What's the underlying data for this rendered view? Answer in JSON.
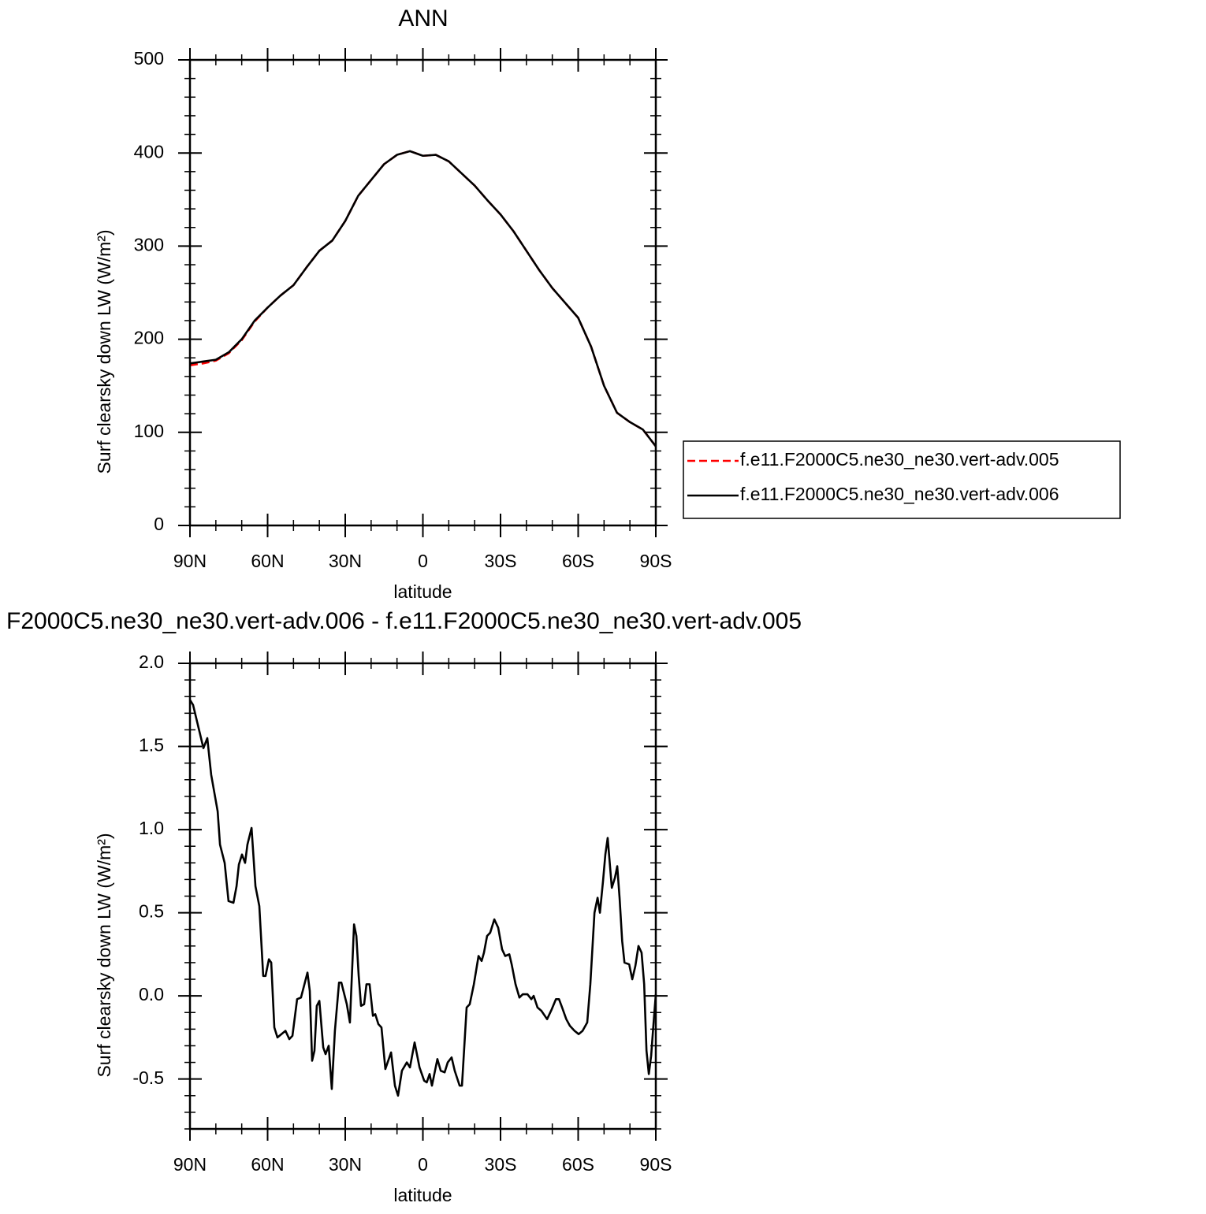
{
  "chart_data": [
    {
      "type": "line",
      "title": "ANN",
      "xlabel": "latitude",
      "ylabel": "Surf clearsky down LW (W/m²)",
      "x": [
        90,
        85,
        80,
        75,
        70,
        65,
        60,
        55,
        50,
        45,
        40,
        35,
        30,
        25,
        20,
        15,
        10,
        5,
        0,
        -5,
        -10,
        -15,
        -20,
        -25,
        -30,
        -35,
        -40,
        -45,
        -50,
        -55,
        -60,
        -65,
        -70,
        -75,
        -80,
        -85,
        -90
      ],
      "series": [
        {
          "name": "f.e11.F2000C5.ne30_ne30.vert-adv.005",
          "color": "#ff0000",
          "dashed": true,
          "values": [
            172,
            174,
            177,
            185,
            199,
            219,
            234,
            247,
            258,
            277,
            295,
            306,
            327,
            354,
            371,
            388,
            398,
            402,
            397,
            398,
            391,
            378,
            365,
            349,
            334,
            316,
            295,
            274,
            255,
            239,
            223,
            192,
            150,
            121,
            111,
            103,
            85
          ]
        },
        {
          "name": "f.e11.F2000C5.ne30_ne30.vert-adv.006",
          "color": "#000000",
          "dashed": false,
          "values": [
            174,
            176,
            178,
            186,
            200,
            220,
            234,
            247,
            258,
            277,
            295,
            306,
            327,
            354,
            371,
            388,
            398,
            402,
            397,
            398,
            391,
            378,
            365,
            349,
            334,
            316,
            295,
            274,
            255,
            239,
            223,
            192,
            150,
            121,
            111,
            103,
            85
          ]
        }
      ],
      "xlim": [
        90,
        -90
      ],
      "xticks": [
        {
          "value": 90,
          "label": "90N"
        },
        {
          "value": 60,
          "label": "60N"
        },
        {
          "value": 30,
          "label": "30N"
        },
        0,
        {
          "value": -30,
          "label": "30S"
        },
        {
          "value": -60,
          "label": "60S"
        },
        {
          "value": -90,
          "label": "90S"
        }
      ],
      "ylim": [
        0,
        500
      ],
      "yticks": [
        0,
        100,
        200,
        300,
        400,
        500
      ],
      "legend": "right"
    },
    {
      "type": "line",
      "title": "F2000C5.ne30_ne30.vert-adv.006 - f.e11.F2000C5.ne30_ne30.vert-adv.005",
      "xlabel": "latitude",
      "ylabel": "Surf clearsky down LW (W/m²)",
      "color": "#000000",
      "x": [
        90,
        88.8,
        84.8,
        83.3,
        81.8,
        79.3,
        78.4,
        76.6,
        75.1,
        73.2,
        72,
        71.1,
        69.9,
        68.7,
        67.8,
        66.2,
        64.7,
        63.2,
        61.7,
        60.8,
        59.5,
        58.6,
        57.4,
        56.2,
        53.1,
        51.6,
        50.4,
        48.6,
        47.1,
        44.6,
        43.7,
        42.8,
        41.9,
        41,
        40,
        38.5,
        37.6,
        36.4,
        35.2,
        34,
        32.4,
        31.5,
        29.4,
        28.2,
        26.6,
        25.7,
        24.8,
        23.9,
        22.7,
        21.8,
        20.6,
        19.3,
        18.4,
        17.2,
        16,
        14.5,
        12.3,
        10.8,
        9.6,
        8.1,
        6.2,
        5,
        3.2,
        1.3,
        -0.5,
        -1.5,
        -2.6,
        -3.5,
        -5.6,
        -6.9,
        -8.4,
        -9.6,
        -11.1,
        -12.3,
        -14.2,
        -15.1,
        -16.9,
        -18.1,
        -19.7,
        -21.5,
        -22.7,
        -23.6,
        -24.8,
        -26,
        -27.6,
        -29.1,
        -30.6,
        -31.8,
        -33.4,
        -34.3,
        -35.8,
        -37.3,
        -38.6,
        -40.4,
        -41.9,
        -42.8,
        -44.3,
        -45.8,
        -48,
        -49.8,
        -51.4,
        -52.6,
        -53.8,
        -55.4,
        -56.8,
        -58.6,
        -60.2,
        -61.7,
        -63.5,
        -64.7,
        -66.3,
        -67.5,
        -68.4,
        -69.6,
        -70.5,
        -71.4,
        -73,
        -74.2,
        -75.1,
        -76,
        -77,
        -77.9,
        -79.7,
        -80.9,
        -82.1,
        -83.3,
        -84.5,
        -85.5,
        -86.4,
        -87.3,
        -88.2,
        -89.1,
        -90
      ],
      "values": [
        1.78,
        1.75,
        1.49,
        1.55,
        1.33,
        1.11,
        0.91,
        0.8,
        0.57,
        0.56,
        0.66,
        0.79,
        0.85,
        0.8,
        0.91,
        1.01,
        0.66,
        0.54,
        0.12,
        0.12,
        0.22,
        0.2,
        -0.19,
        -0.25,
        -0.21,
        -0.26,
        -0.24,
        -0.02,
        -0.01,
        0.14,
        0.03,
        -0.39,
        -0.33,
        -0.06,
        -0.03,
        -0.31,
        -0.35,
        -0.3,
        -0.56,
        -0.21,
        0.08,
        0.08,
        -0.05,
        -0.16,
        0.43,
        0.36,
        0.12,
        -0.06,
        -0.05,
        0.07,
        0.07,
        -0.12,
        -0.11,
        -0.17,
        -0.19,
        -0.44,
        -0.34,
        -0.54,
        -0.6,
        -0.45,
        -0.4,
        -0.43,
        -0.28,
        -0.43,
        -0.51,
        -0.52,
        -0.47,
        -0.54,
        -0.38,
        -0.45,
        -0.46,
        -0.4,
        -0.37,
        -0.45,
        -0.54,
        -0.54,
        -0.07,
        -0.05,
        0.07,
        0.24,
        0.21,
        0.26,
        0.36,
        0.38,
        0.46,
        0.41,
        0.28,
        0.24,
        0.25,
        0.19,
        0.07,
        -0.01,
        0.01,
        0.01,
        -0.02,
        0,
        -0.07,
        -0.09,
        -0.14,
        -0.08,
        -0.02,
        -0.02,
        -0.07,
        -0.14,
        -0.18,
        -0.21,
        -0.23,
        -0.21,
        -0.16,
        0.07,
        0.5,
        0.59,
        0.5,
        0.69,
        0.85,
        0.95,
        0.65,
        0.71,
        0.78,
        0.59,
        0.33,
        0.2,
        0.19,
        0.1,
        0.18,
        0.3,
        0.26,
        0.07,
        -0.33,
        -0.47,
        -0.36,
        -0.17,
        0.01
      ],
      "xlim": [
        90,
        -90
      ],
      "xticks": [
        {
          "value": 90,
          "label": "90N"
        },
        {
          "value": 60,
          "label": "60N"
        },
        {
          "value": 30,
          "label": "30N"
        },
        0,
        {
          "value": -30,
          "label": "30S"
        },
        {
          "value": -60,
          "label": "60S"
        },
        {
          "value": -90,
          "label": "90S"
        }
      ],
      "ylim": [
        -0.8,
        2.0
      ],
      "yticks": [
        -0.5,
        {
          "value": 0,
          "label": "0.0"
        },
        0.5,
        {
          "value": 1,
          "label": "1.0"
        },
        1.5,
        {
          "value": 2,
          "label": "2.0"
        }
      ]
    }
  ]
}
